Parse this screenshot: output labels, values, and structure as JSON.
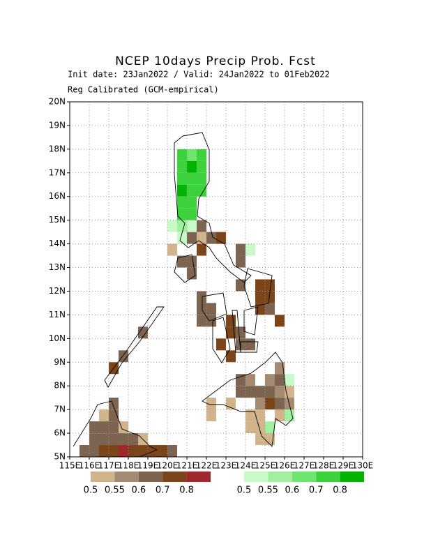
{
  "chart_data": {
    "type": "map",
    "title": "NCEP 10days Precip Prob. Fcst",
    "subtitle": [
      "Init date: 23Jan2022 / Valid: 24Jan2022 to 01Feb2022",
      "Reg Calibrated (GCM-empirical)"
    ],
    "xlim": [
      115,
      130
    ],
    "ylim": [
      5,
      20
    ],
    "grid": true,
    "xticks": [
      {
        "value": 115,
        "label": "115E"
      },
      {
        "value": 116,
        "label": "116E"
      },
      {
        "value": 117,
        "label": "117E"
      },
      {
        "value": 118,
        "label": "118E"
      },
      {
        "value": 119,
        "label": "119E"
      },
      {
        "value": 120,
        "label": "120E"
      },
      {
        "value": 121,
        "label": "121E"
      },
      {
        "value": 122,
        "label": "122E"
      },
      {
        "value": 123,
        "label": "123E"
      },
      {
        "value": 124,
        "label": "124E"
      },
      {
        "value": 125,
        "label": "125E"
      },
      {
        "value": 126,
        "label": "126E"
      },
      {
        "value": 127,
        "label": "127E"
      },
      {
        "value": 128,
        "label": "128E"
      },
      {
        "value": 129,
        "label": "129E"
      },
      {
        "value": 130,
        "label": "130E"
      }
    ],
    "yticks": [
      {
        "value": 5,
        "label": "5N"
      },
      {
        "value": 6,
        "label": "6N"
      },
      {
        "value": 7,
        "label": "7N"
      },
      {
        "value": 8,
        "label": "8N"
      },
      {
        "value": 9,
        "label": "9N"
      },
      {
        "value": 10,
        "label": "10N"
      },
      {
        "value": 11,
        "label": "11N"
      },
      {
        "value": 12,
        "label": "12N"
      },
      {
        "value": 13,
        "label": "13N"
      },
      {
        "value": 14,
        "label": "14N"
      },
      {
        "value": 15,
        "label": "15N"
      },
      {
        "value": 16,
        "label": "16N"
      },
      {
        "value": 17,
        "label": "17N"
      },
      {
        "value": 18,
        "label": "18N"
      },
      {
        "value": 19,
        "label": "19N"
      },
      {
        "value": 20,
        "label": "20N"
      }
    ],
    "dry_legend": {
      "levels": [
        0.5,
        0.55,
        0.6,
        0.7,
        0.8
      ],
      "colors": [
        "#d2b48c",
        "#a38a70",
        "#7d6450",
        "#7b4519",
        "#a0282d"
      ]
    },
    "wet_legend": {
      "levels": [
        0.5,
        0.55,
        0.6,
        0.7,
        0.8
      ],
      "colors": [
        "#c8fac8",
        "#a0f0a0",
        "#6ee66e",
        "#3cd23c",
        "#00b400"
      ]
    },
    "wet_cells": [
      {
        "lon": 120.5,
        "lat": 17.5,
        "p": 0.7
      },
      {
        "lon": 121.0,
        "lat": 17.5,
        "p": 0.6
      },
      {
        "lon": 121.5,
        "lat": 17.5,
        "p": 0.7
      },
      {
        "lon": 120.5,
        "lat": 17.0,
        "p": 0.7
      },
      {
        "lon": 121.0,
        "lat": 17.0,
        "p": 0.8
      },
      {
        "lon": 121.5,
        "lat": 17.0,
        "p": 0.7
      },
      {
        "lon": 120.5,
        "lat": 16.5,
        "p": 0.7
      },
      {
        "lon": 121.0,
        "lat": 16.5,
        "p": 0.7
      },
      {
        "lon": 121.5,
        "lat": 16.5,
        "p": 0.7
      },
      {
        "lon": 120.5,
        "lat": 16.0,
        "p": 0.8
      },
      {
        "lon": 121.0,
        "lat": 16.0,
        "p": 0.7
      },
      {
        "lon": 121.5,
        "lat": 16.0,
        "p": 0.7
      },
      {
        "lon": 120.5,
        "lat": 15.5,
        "p": 0.7
      },
      {
        "lon": 121.0,
        "lat": 15.5,
        "p": 0.7
      },
      {
        "lon": 120.5,
        "lat": 15.0,
        "p": 0.7
      },
      {
        "lon": 121.0,
        "lat": 15.0,
        "p": 0.7
      },
      {
        "lon": 120.0,
        "lat": 14.5,
        "p": 0.5
      },
      {
        "lon": 120.5,
        "lat": 14.5,
        "p": 0.55
      },
      {
        "lon": 121.0,
        "lat": 14.5,
        "p": 0.5
      },
      {
        "lon": 120.5,
        "lat": 14.0,
        "p": 0.5
      },
      {
        "lon": 124.0,
        "lat": 13.5,
        "p": 0.5
      },
      {
        "lon": 126.0,
        "lat": 8.0,
        "p": 0.5
      },
      {
        "lon": 125.0,
        "lat": 6.0,
        "p": 0.55
      },
      {
        "lon": 126.0,
        "lat": 6.5,
        "p": 0.55
      }
    ],
    "dry_cells": [
      {
        "lon": 120.0,
        "lat": 13.5,
        "p": 0.5
      },
      {
        "lon": 120.5,
        "lat": 13.0,
        "p": 0.6
      },
      {
        "lon": 121.0,
        "lat": 13.0,
        "p": 0.6
      },
      {
        "lon": 121.0,
        "lat": 12.5,
        "p": 0.6
      },
      {
        "lon": 121.0,
        "lat": 14.0,
        "p": 0.6
      },
      {
        "lon": 121.5,
        "lat": 14.5,
        "p": 0.6
      },
      {
        "lon": 121.5,
        "lat": 14.0,
        "p": 0.5
      },
      {
        "lon": 122.0,
        "lat": 14.0,
        "p": 0.6
      },
      {
        "lon": 121.5,
        "lat": 13.5,
        "p": 0.7
      },
      {
        "lon": 122.5,
        "lat": 14.0,
        "p": 0.7
      },
      {
        "lon": 123.5,
        "lat": 13.5,
        "p": 0.6
      },
      {
        "lon": 123.5,
        "lat": 13.0,
        "p": 0.6
      },
      {
        "lon": 123.5,
        "lat": 12.0,
        "p": 0.6
      },
      {
        "lon": 124.5,
        "lat": 12.0,
        "p": 0.7
      },
      {
        "lon": 125.0,
        "lat": 12.0,
        "p": 0.7
      },
      {
        "lon": 124.5,
        "lat": 11.5,
        "p": 0.7
      },
      {
        "lon": 125.0,
        "lat": 11.5,
        "p": 0.7
      },
      {
        "lon": 124.5,
        "lat": 11.0,
        "p": 0.7
      },
      {
        "lon": 125.0,
        "lat": 11.0,
        "p": 0.6
      },
      {
        "lon": 125.5,
        "lat": 10.5,
        "p": 0.7
      },
      {
        "lon": 121.5,
        "lat": 11.5,
        "p": 0.6
      },
      {
        "lon": 121.5,
        "lat": 11.0,
        "p": 0.6
      },
      {
        "lon": 122.0,
        "lat": 11.0,
        "p": 0.6
      },
      {
        "lon": 121.5,
        "lat": 10.5,
        "p": 0.6
      },
      {
        "lon": 122.0,
        "lat": 10.5,
        "p": 0.6
      },
      {
        "lon": 123.0,
        "lat": 10.5,
        "p": 0.7
      },
      {
        "lon": 123.0,
        "lat": 10.0,
        "p": 0.7
      },
      {
        "lon": 123.5,
        "lat": 10.0,
        "p": 0.6
      },
      {
        "lon": 123.5,
        "lat": 9.5,
        "p": 0.6
      },
      {
        "lon": 122.5,
        "lat": 9.5,
        "p": 0.7
      },
      {
        "lon": 123.0,
        "lat": 9.0,
        "p": 0.7
      },
      {
        "lon": 124.0,
        "lat": 9.5,
        "p": 0.6
      },
      {
        "lon": 125.5,
        "lat": 8.5,
        "p": 0.55
      },
      {
        "lon": 125.0,
        "lat": 8.0,
        "p": 0.55
      },
      {
        "lon": 125.5,
        "lat": 8.0,
        "p": 0.6
      },
      {
        "lon": 123.5,
        "lat": 8.0,
        "p": 0.6
      },
      {
        "lon": 124.0,
        "lat": 8.0,
        "p": 0.55
      },
      {
        "lon": 123.5,
        "lat": 7.5,
        "p": 0.6
      },
      {
        "lon": 124.0,
        "lat": 7.5,
        "p": 0.6
      },
      {
        "lon": 124.5,
        "lat": 7.5,
        "p": 0.6
      },
      {
        "lon": 125.0,
        "lat": 7.5,
        "p": 0.6
      },
      {
        "lon": 125.5,
        "lat": 7.5,
        "p": 0.55
      },
      {
        "lon": 126.0,
        "lat": 7.5,
        "p": 0.5
      },
      {
        "lon": 124.5,
        "lat": 7.0,
        "p": 0.55
      },
      {
        "lon": 125.0,
        "lat": 7.0,
        "p": 0.7
      },
      {
        "lon": 125.5,
        "lat": 7.0,
        "p": 0.6
      },
      {
        "lon": 126.0,
        "lat": 7.0,
        "p": 0.55
      },
      {
        "lon": 123.0,
        "lat": 7.0,
        "p": 0.5
      },
      {
        "lon": 122.0,
        "lat": 7.0,
        "p": 0.5
      },
      {
        "lon": 122.0,
        "lat": 6.5,
        "p": 0.5
      },
      {
        "lon": 124.0,
        "lat": 6.5,
        "p": 0.5
      },
      {
        "lon": 124.0,
        "lat": 6.0,
        "p": 0.5
      },
      {
        "lon": 124.5,
        "lat": 6.0,
        "p": 0.5
      },
      {
        "lon": 124.5,
        "lat": 6.5,
        "p": 0.5
      },
      {
        "lon": 124.5,
        "lat": 5.5,
        "p": 0.5
      },
      {
        "lon": 125.0,
        "lat": 5.5,
        "p": 0.5
      },
      {
        "lon": 125.5,
        "lat": 6.5,
        "p": 0.5
      },
      {
        "lon": 118.5,
        "lat": 10.0,
        "p": 0.6
      },
      {
        "lon": 117.5,
        "lat": 9.0,
        "p": 0.6
      },
      {
        "lon": 117.0,
        "lat": 8.5,
        "p": 0.7
      },
      {
        "lon": 117.0,
        "lat": 7.0,
        "p": 0.6
      },
      {
        "lon": 117.0,
        "lat": 6.5,
        "p": 0.6
      },
      {
        "lon": 116.5,
        "lat": 6.5,
        "p": 0.5
      },
      {
        "lon": 116.0,
        "lat": 6.0,
        "p": 0.6
      },
      {
        "lon": 116.5,
        "lat": 6.0,
        "p": 0.6
      },
      {
        "lon": 117.0,
        "lat": 6.0,
        "p": 0.6
      },
      {
        "lon": 117.5,
        "lat": 6.0,
        "p": 0.5
      },
      {
        "lon": 116.0,
        "lat": 5.5,
        "p": 0.6
      },
      {
        "lon": 116.5,
        "lat": 5.5,
        "p": 0.6
      },
      {
        "lon": 117.0,
        "lat": 5.5,
        "p": 0.6
      },
      {
        "lon": 117.5,
        "lat": 5.5,
        "p": 0.6
      },
      {
        "lon": 118.0,
        "lat": 5.5,
        "p": 0.6
      },
      {
        "lon": 118.5,
        "lat": 5.5,
        "p": 0.5
      },
      {
        "lon": 115.5,
        "lat": 5.0,
        "p": 0.6
      },
      {
        "lon": 116.0,
        "lat": 5.0,
        "p": 0.6
      },
      {
        "lon": 116.5,
        "lat": 5.0,
        "p": 0.7
      },
      {
        "lon": 117.0,
        "lat": 5.0,
        "p": 0.7
      },
      {
        "lon": 117.5,
        "lat": 5.0,
        "p": 0.8
      },
      {
        "lon": 118.0,
        "lat": 5.0,
        "p": 0.7
      },
      {
        "lon": 118.5,
        "lat": 5.0,
        "p": 0.7
      },
      {
        "lon": 119.0,
        "lat": 5.0,
        "p": 0.7
      },
      {
        "lon": 119.5,
        "lat": 5.0,
        "p": 0.7
      },
      {
        "lon": 120.0,
        "lat": 5.0,
        "p": 0.6
      }
    ]
  }
}
